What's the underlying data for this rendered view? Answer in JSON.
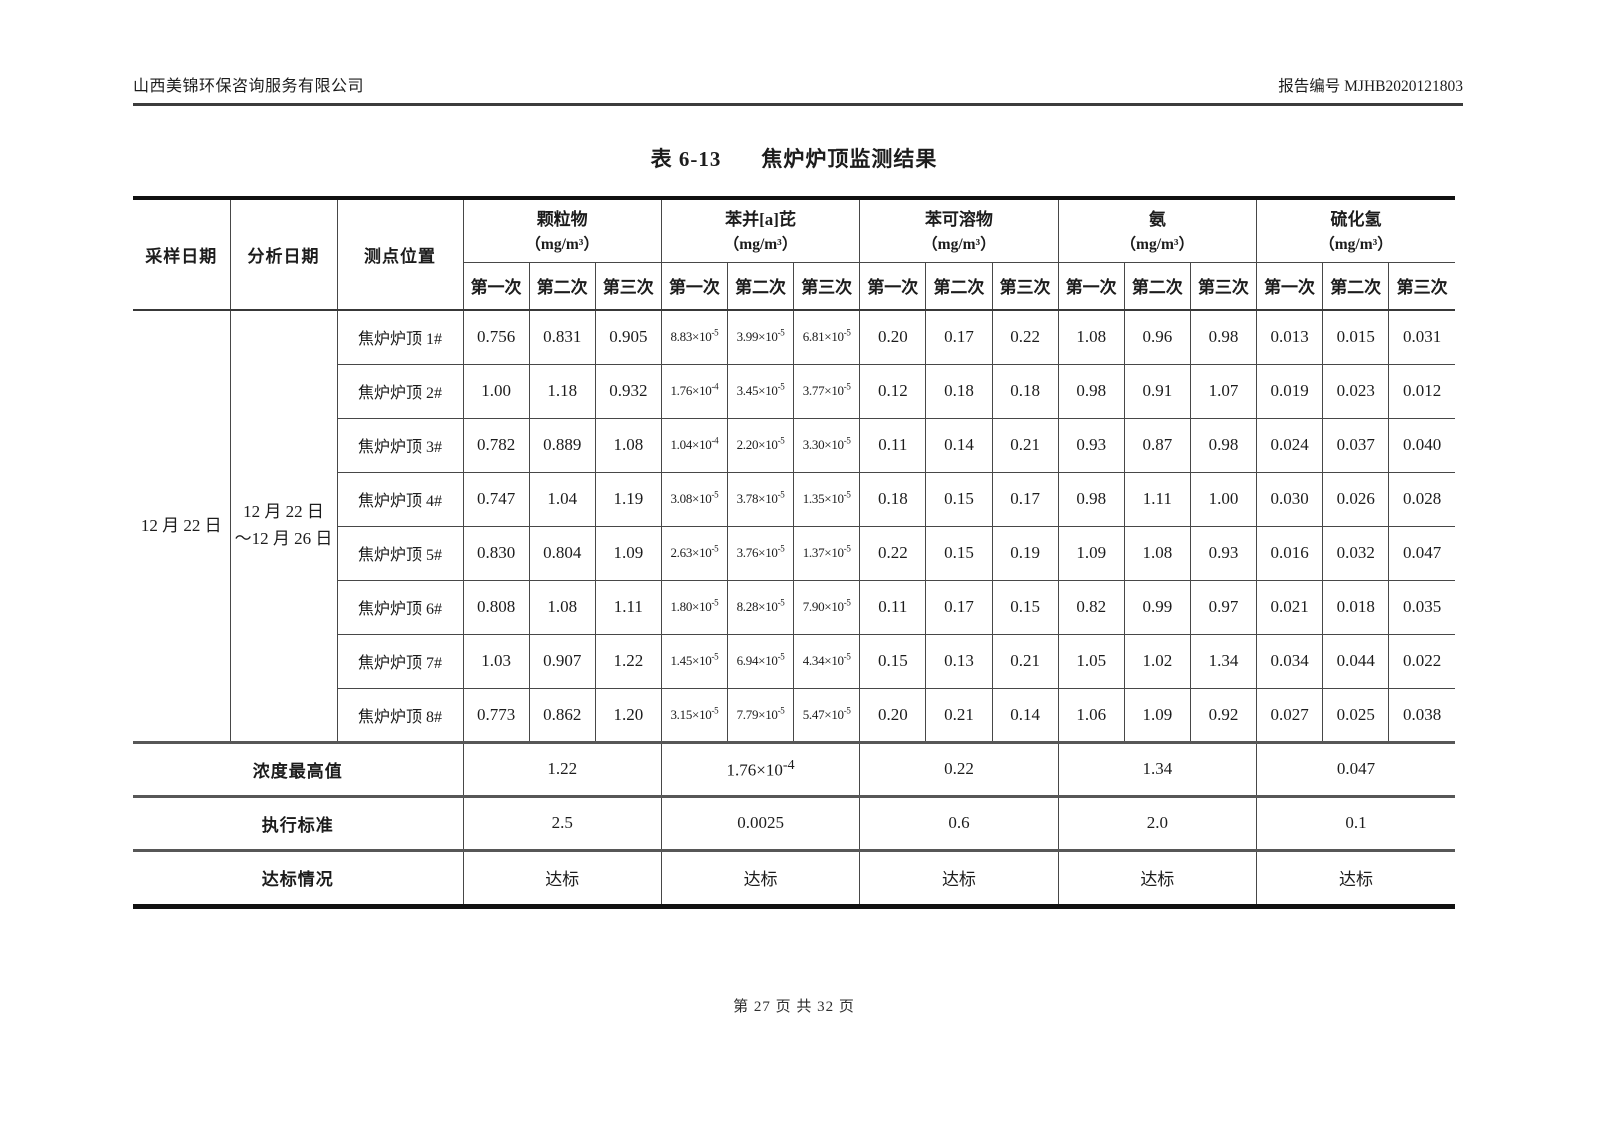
{
  "page": {
    "header_left": "山西美锦环保咨询服务有限公司",
    "header_right": "报告编号 MJHB2020121803",
    "title_no": "表 6-13",
    "title_text": "焦炉炉顶监测结果",
    "footer": "第 27 页  共 32 页"
  },
  "table": {
    "columns": {
      "sampling_date": "采样日期",
      "analysis_date": "分析日期",
      "location": "测点位置"
    },
    "groups": [
      {
        "name": "颗粒物",
        "unit": "（mg/m³）"
      },
      {
        "name": "苯并[a]芘",
        "unit": "（mg/m³）"
      },
      {
        "name": "苯可溶物",
        "unit": "（mg/m³）"
      },
      {
        "name": "氨",
        "unit": "（mg/m³）"
      },
      {
        "name": "硫化氢",
        "unit": "（mg/m³）"
      }
    ],
    "trials": [
      "第一次",
      "第二次",
      "第三次"
    ],
    "sampling_date": "12 月 22 日",
    "analysis_date_line1": "12 月 22 日",
    "analysis_date_line2": "～12 月 26 日",
    "rows": [
      {
        "location": "焦炉炉顶 1#",
        "values": [
          "0.756",
          "0.831",
          "0.905",
          "8.83×10^-5",
          "3.99×10^-5",
          "6.81×10^-5",
          "0.20",
          "0.17",
          "0.22",
          "1.08",
          "0.96",
          "0.98",
          "0.013",
          "0.015",
          "0.031"
        ]
      },
      {
        "location": "焦炉炉顶 2#",
        "values": [
          "1.00",
          "1.18",
          "0.932",
          "1.76×10^-4",
          "3.45×10^-5",
          "3.77×10^-5",
          "0.12",
          "0.18",
          "0.18",
          "0.98",
          "0.91",
          "1.07",
          "0.019",
          "0.023",
          "0.012"
        ]
      },
      {
        "location": "焦炉炉顶 3#",
        "values": [
          "0.782",
          "0.889",
          "1.08",
          "1.04×10^-4",
          "2.20×10^-5",
          "3.30×10^-5",
          "0.11",
          "0.14",
          "0.21",
          "0.93",
          "0.87",
          "0.98",
          "0.024",
          "0.037",
          "0.040"
        ]
      },
      {
        "location": "焦炉炉顶 4#",
        "values": [
          "0.747",
          "1.04",
          "1.19",
          "3.08×10^-5",
          "3.78×10^-5",
          "1.35×10^-5",
          "0.18",
          "0.15",
          "0.17",
          "0.98",
          "1.11",
          "1.00",
          "0.030",
          "0.026",
          "0.028"
        ]
      },
      {
        "location": "焦炉炉顶 5#",
        "values": [
          "0.830",
          "0.804",
          "1.09",
          "2.63×10^-5",
          "3.76×10^-5",
          "1.37×10^-5",
          "0.22",
          "0.15",
          "0.19",
          "1.09",
          "1.08",
          "0.93",
          "0.016",
          "0.032",
          "0.047"
        ]
      },
      {
        "location": "焦炉炉顶 6#",
        "values": [
          "0.808",
          "1.08",
          "1.11",
          "1.80×10^-5",
          "8.28×10^-5",
          "7.90×10^-5",
          "0.11",
          "0.17",
          "0.15",
          "0.82",
          "0.99",
          "0.97",
          "0.021",
          "0.018",
          "0.035"
        ]
      },
      {
        "location": "焦炉炉顶 7#",
        "values": [
          "1.03",
          "0.907",
          "1.22",
          "1.45×10^-5",
          "6.94×10^-5",
          "4.34×10^-5",
          "0.15",
          "0.13",
          "0.21",
          "1.05",
          "1.02",
          "1.34",
          "0.034",
          "0.044",
          "0.022"
        ]
      },
      {
        "location": "焦炉炉顶 8#",
        "values": [
          "0.773",
          "0.862",
          "1.20",
          "3.15×10^-5",
          "7.79×10^-5",
          "5.47×10^-5",
          "0.20",
          "0.21",
          "0.14",
          "1.06",
          "1.09",
          "0.92",
          "0.027",
          "0.025",
          "0.038"
        ]
      }
    ],
    "max_row": {
      "label": "浓度最高值",
      "values": [
        "1.22",
        "1.76×10^-4",
        "0.22",
        "1.34",
        "0.047"
      ]
    },
    "standard_row": {
      "label": "执行标准",
      "values": [
        "2.5",
        "0.0025",
        "0.6",
        "2.0",
        "0.1"
      ]
    },
    "compliance_row": {
      "label": "达标情况",
      "values": [
        "达标",
        "达标",
        "达标",
        "达标",
        "达标"
      ]
    }
  }
}
